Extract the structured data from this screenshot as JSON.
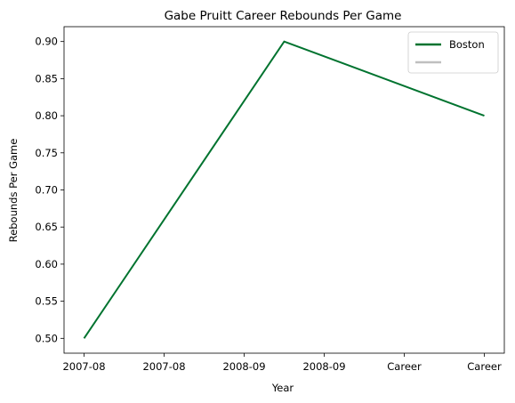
{
  "chart_data": {
    "type": "line",
    "title": "Gabe Pruitt Career Rebounds Per Game",
    "xlabel": "Year",
    "ylabel": "Rebounds Per Game",
    "x_ticks": [
      "2007-08",
      "2007-08",
      "2008-09",
      "2008-09",
      "Career",
      "Career"
    ],
    "y_ticks": [
      "0.50",
      "0.55",
      "0.60",
      "0.65",
      "0.70",
      "0.75",
      "0.80",
      "0.85",
      "0.90"
    ],
    "ylim": [
      0.48,
      0.92
    ],
    "grid": false,
    "legend_position": "top-right",
    "series": [
      {
        "name": "Boston",
        "color": "#00732f",
        "x": [
          0,
          2.5,
          5
        ],
        "values": [
          0.5,
          0.9,
          0.8
        ]
      },
      {
        "name": "",
        "color": "#bfbfbf",
        "x": [],
        "values": []
      }
    ]
  }
}
